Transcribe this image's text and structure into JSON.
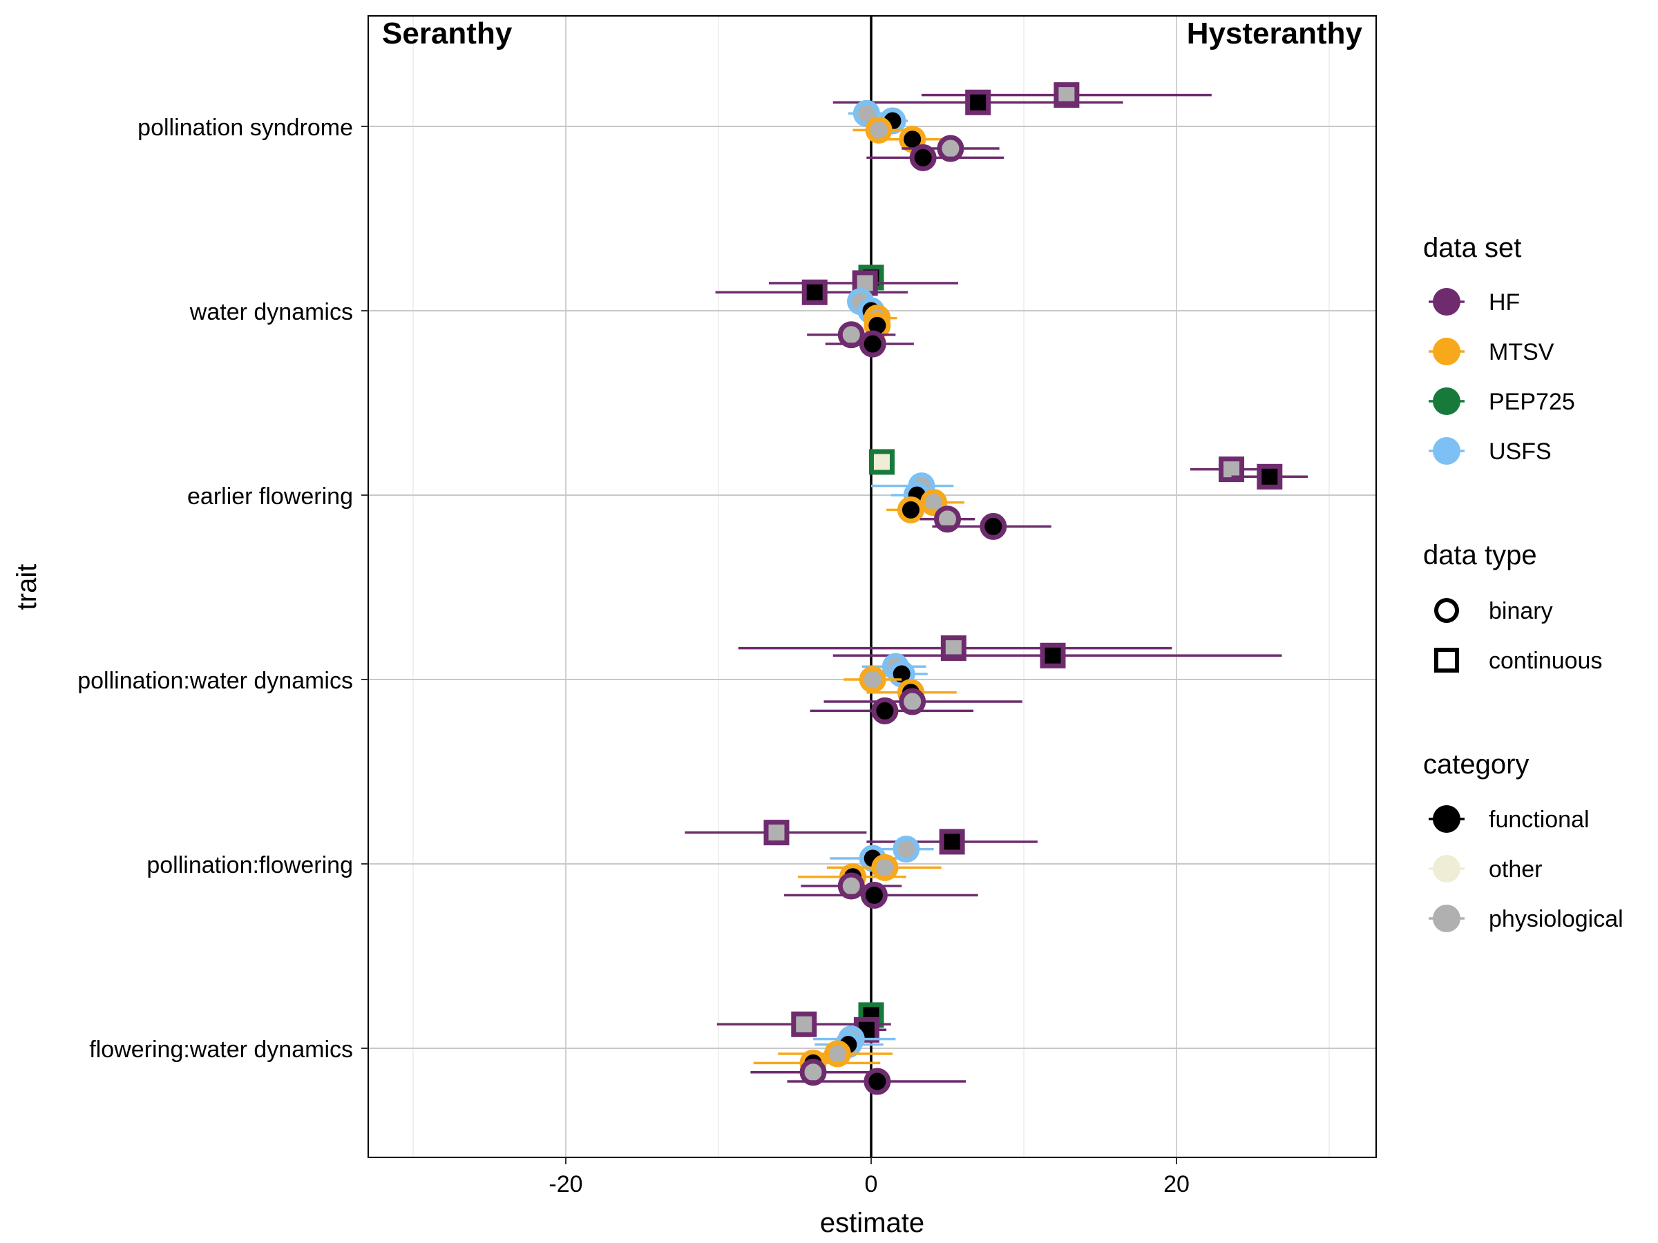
{
  "chart_data": {
    "type": "scatter",
    "title": "",
    "xlabel": "estimate",
    "ylabel": "trait",
    "xlim": [
      -33,
      33.5
    ],
    "x_ticks": [
      -20,
      0,
      20
    ],
    "x_tick_labels": [
      "-20",
      "0",
      "20"
    ],
    "grid": true,
    "reference_line_x": 0,
    "annotations": {
      "left": "Seranthy",
      "right": "Hysteranthy"
    },
    "categories": [
      "pollination syndrome",
      "water dynamics",
      "earlier flowering",
      "pollination:water dynamics",
      "pollination:flowering",
      "flowering:water dynamics"
    ],
    "legend": {
      "placement": "right",
      "data_set": {
        "title": "data set",
        "entries": [
          {
            "label": "HF",
            "color": "#6e2c6e"
          },
          {
            "label": "MTSV",
            "color": "#f7a81b"
          },
          {
            "label": "PEP725",
            "color": "#177a3a"
          },
          {
            "label": "USFS",
            "color": "#7cc0f4"
          }
        ]
      },
      "data_type": {
        "title": "data type",
        "entries": [
          {
            "label": "binary",
            "shape": "circle"
          },
          {
            "label": "continuous",
            "shape": "square"
          }
        ]
      },
      "category": {
        "title": "category",
        "entries": [
          {
            "label": "functional",
            "color": "#000000"
          },
          {
            "label": "other",
            "color": "#efedd5"
          },
          {
            "label": "physiological",
            "color": "#b0b0b0"
          }
        ]
      }
    },
    "points": [
      {
        "trait": "pollination syndrome",
        "offset": -0.17,
        "x": 12.8,
        "lo": 3.3,
        "hi": 22.3,
        "set": "HF",
        "type": "continuous",
        "cat": "physiological"
      },
      {
        "trait": "pollination syndrome",
        "offset": -0.13,
        "x": 7.0,
        "lo": -2.5,
        "hi": 16.5,
        "set": "HF",
        "type": "continuous",
        "cat": "functional"
      },
      {
        "trait": "pollination syndrome",
        "offset": -0.07,
        "x": -0.3,
        "lo": -1.5,
        "hi": 0.9,
        "set": "USFS",
        "type": "binary",
        "cat": "physiological"
      },
      {
        "trait": "pollination syndrome",
        "offset": -0.03,
        "x": 1.4,
        "lo": 0.5,
        "hi": 2.4,
        "set": "USFS",
        "type": "binary",
        "cat": "functional"
      },
      {
        "trait": "pollination syndrome",
        "offset": 0.02,
        "x": 0.5,
        "lo": -1.2,
        "hi": 2.2,
        "set": "MTSV",
        "type": "binary",
        "cat": "physiological"
      },
      {
        "trait": "pollination syndrome",
        "offset": 0.07,
        "x": 2.7,
        "lo": 0.5,
        "hi": 4.9,
        "set": "MTSV",
        "type": "binary",
        "cat": "functional"
      },
      {
        "trait": "pollination syndrome",
        "offset": 0.12,
        "x": 5.2,
        "lo": 2.0,
        "hi": 8.4,
        "set": "HF",
        "type": "binary",
        "cat": "physiological"
      },
      {
        "trait": "pollination syndrome",
        "offset": 0.17,
        "x": 3.4,
        "lo": -0.3,
        "hi": 8.7,
        "set": "HF",
        "type": "binary",
        "cat": "functional"
      },
      {
        "trait": "water dynamics",
        "offset": -0.18,
        "x": 0.0,
        "lo": -0.4,
        "hi": 0.4,
        "set": "PEP725",
        "type": "continuous",
        "cat": "functional"
      },
      {
        "trait": "water dynamics",
        "offset": -0.15,
        "x": -0.4,
        "lo": -6.7,
        "hi": 5.7,
        "set": "HF",
        "type": "continuous",
        "cat": "physiological"
      },
      {
        "trait": "water dynamics",
        "offset": -0.1,
        "x": -3.7,
        "lo": -10.2,
        "hi": 2.4,
        "set": "HF",
        "type": "continuous",
        "cat": "functional"
      },
      {
        "trait": "water dynamics",
        "offset": -0.05,
        "x": -0.7,
        "lo": -1.5,
        "hi": 0.1,
        "set": "USFS",
        "type": "binary",
        "cat": "physiological"
      },
      {
        "trait": "water dynamics",
        "offset": 0.0,
        "x": 0.0,
        "lo": -0.6,
        "hi": 0.6,
        "set": "USFS",
        "type": "binary",
        "cat": "functional"
      },
      {
        "trait": "water dynamics",
        "offset": 0.04,
        "x": 0.4,
        "lo": -0.5,
        "hi": 1.7,
        "set": "MTSV",
        "type": "binary",
        "cat": "physiological"
      },
      {
        "trait": "water dynamics",
        "offset": 0.08,
        "x": 0.4,
        "lo": -0.3,
        "hi": 1.2,
        "set": "MTSV",
        "type": "binary",
        "cat": "functional"
      },
      {
        "trait": "water dynamics",
        "offset": 0.13,
        "x": -1.3,
        "lo": -4.2,
        "hi": 1.6,
        "set": "HF",
        "type": "binary",
        "cat": "physiological"
      },
      {
        "trait": "water dynamics",
        "offset": 0.18,
        "x": 0.1,
        "lo": -3.0,
        "hi": 2.8,
        "set": "HF",
        "type": "binary",
        "cat": "functional"
      },
      {
        "trait": "earlier flowering",
        "offset": -0.18,
        "x": 0.7,
        "lo": 0.3,
        "hi": 1.1,
        "set": "PEP725",
        "type": "continuous",
        "cat": "other"
      },
      {
        "trait": "earlier flowering",
        "offset": -0.14,
        "x": 23.6,
        "lo": 20.9,
        "hi": 26.3,
        "set": "HF",
        "type": "continuous",
        "cat": "physiological"
      },
      {
        "trait": "earlier flowering",
        "offset": -0.1,
        "x": 26.1,
        "lo": 23.6,
        "hi": 28.6,
        "set": "HF",
        "type": "continuous",
        "cat": "functional"
      },
      {
        "trait": "earlier flowering",
        "offset": -0.05,
        "x": 3.3,
        "lo": 0.0,
        "hi": 5.4,
        "set": "USFS",
        "type": "binary",
        "cat": "physiological"
      },
      {
        "trait": "earlier flowering",
        "offset": 0.0,
        "x": 3.0,
        "lo": 1.3,
        "hi": 4.7,
        "set": "USFS",
        "type": "binary",
        "cat": "functional"
      },
      {
        "trait": "earlier flowering",
        "offset": 0.04,
        "x": 4.1,
        "lo": 2.2,
        "hi": 6.1,
        "set": "MTSV",
        "type": "binary",
        "cat": "physiological"
      },
      {
        "trait": "earlier flowering",
        "offset": 0.08,
        "x": 2.6,
        "lo": 1.0,
        "hi": 4.2,
        "set": "MTSV",
        "type": "binary",
        "cat": "functional"
      },
      {
        "trait": "earlier flowering",
        "offset": 0.13,
        "x": 5.0,
        "lo": 3.2,
        "hi": 6.8,
        "set": "HF",
        "type": "binary",
        "cat": "physiological"
      },
      {
        "trait": "earlier flowering",
        "offset": 0.17,
        "x": 8.0,
        "lo": 4.0,
        "hi": 11.8,
        "set": "HF",
        "type": "binary",
        "cat": "functional"
      },
      {
        "trait": "pollination:water dynamics",
        "offset": -0.17,
        "x": 5.4,
        "lo": -8.7,
        "hi": 19.7,
        "set": "HF",
        "type": "continuous",
        "cat": "physiological"
      },
      {
        "trait": "pollination:water dynamics",
        "offset": -0.13,
        "x": 11.9,
        "lo": -2.5,
        "hi": 26.9,
        "set": "HF",
        "type": "continuous",
        "cat": "functional"
      },
      {
        "trait": "pollination:water dynamics",
        "offset": -0.07,
        "x": 1.6,
        "lo": -0.6,
        "hi": 3.6,
        "set": "USFS",
        "type": "binary",
        "cat": "physiological"
      },
      {
        "trait": "pollination:water dynamics",
        "offset": -0.03,
        "x": 2.0,
        "lo": 0.3,
        "hi": 3.7,
        "set": "USFS",
        "type": "binary",
        "cat": "functional"
      },
      {
        "trait": "pollination:water dynamics",
        "offset": -0.0,
        "x": 0.1,
        "lo": -1.8,
        "hi": 2.0,
        "set": "MTSV",
        "type": "binary",
        "cat": "physiological"
      },
      {
        "trait": "pollination:water dynamics",
        "offset": 0.07,
        "x": 2.6,
        "lo": -0.3,
        "hi": 5.6,
        "set": "MTSV",
        "type": "binary",
        "cat": "functional"
      },
      {
        "trait": "pollination:water dynamics",
        "offset": 0.12,
        "x": 2.7,
        "lo": -3.1,
        "hi": 9.9,
        "set": "HF",
        "type": "binary",
        "cat": "physiological"
      },
      {
        "trait": "pollination:water dynamics",
        "offset": 0.17,
        "x": 0.9,
        "lo": -4.0,
        "hi": 6.7,
        "set": "HF",
        "type": "binary",
        "cat": "functional"
      },
      {
        "trait": "pollination:flowering",
        "offset": -0.17,
        "x": -6.2,
        "lo": -12.2,
        "hi": -0.3,
        "set": "HF",
        "type": "continuous",
        "cat": "physiological"
      },
      {
        "trait": "pollination:flowering",
        "offset": -0.12,
        "x": 5.3,
        "lo": -0.3,
        "hi": 10.9,
        "set": "HF",
        "type": "continuous",
        "cat": "functional"
      },
      {
        "trait": "pollination:flowering",
        "offset": -0.08,
        "x": 2.3,
        "lo": 0.5,
        "hi": 4.1,
        "set": "USFS",
        "type": "binary",
        "cat": "physiological"
      },
      {
        "trait": "pollination:flowering",
        "offset": -0.03,
        "x": 0.1,
        "lo": -2.7,
        "hi": 2.9,
        "set": "USFS",
        "type": "binary",
        "cat": "functional"
      },
      {
        "trait": "pollination:flowering",
        "offset": 0.02,
        "x": 0.9,
        "lo": -2.9,
        "hi": 4.6,
        "set": "MTSV",
        "type": "binary",
        "cat": "physiological"
      },
      {
        "trait": "pollination:flowering",
        "offset": 0.07,
        "x": -1.2,
        "lo": -4.8,
        "hi": 2.3,
        "set": "MTSV",
        "type": "binary",
        "cat": "functional"
      },
      {
        "trait": "pollination:flowering",
        "offset": 0.12,
        "x": -1.3,
        "lo": -4.6,
        "hi": 2.0,
        "set": "HF",
        "type": "binary",
        "cat": "physiological"
      },
      {
        "trait": "pollination:flowering",
        "offset": 0.17,
        "x": 0.2,
        "lo": -5.7,
        "hi": 7.0,
        "set": "HF",
        "type": "binary",
        "cat": "functional"
      },
      {
        "trait": "flowering:water dynamics",
        "offset": -0.18,
        "x": 0.0,
        "lo": -0.4,
        "hi": 0.4,
        "set": "PEP725",
        "type": "continuous",
        "cat": "functional"
      },
      {
        "trait": "flowering:water dynamics",
        "offset": -0.13,
        "x": -4.4,
        "lo": -10.1,
        "hi": 1.3,
        "set": "HF",
        "type": "continuous",
        "cat": "physiological"
      },
      {
        "trait": "flowering:water dynamics",
        "offset": -0.1,
        "x": -0.3,
        "lo": -1.3,
        "hi": 1.0,
        "set": "HF",
        "type": "continuous",
        "cat": "functional"
      },
      {
        "trait": "flowering:water dynamics",
        "offset": -0.05,
        "x": -1.3,
        "lo": -3.8,
        "hi": 1.6,
        "set": "USFS",
        "type": "binary",
        "cat": "physiological"
      },
      {
        "trait": "flowering:water dynamics",
        "offset": -0.02,
        "x": -1.5,
        "lo": -3.7,
        "hi": 0.8,
        "set": "USFS",
        "type": "binary",
        "cat": "functional"
      },
      {
        "trait": "flowering:water dynamics",
        "offset": 0.03,
        "x": -2.2,
        "lo": -6.1,
        "hi": 1.4,
        "set": "MTSV",
        "type": "binary",
        "cat": "physiological"
      },
      {
        "trait": "flowering:water dynamics",
        "offset": 0.08,
        "x": -3.8,
        "lo": -7.7,
        "hi": 0.6,
        "set": "MTSV",
        "type": "binary",
        "cat": "functional"
      },
      {
        "trait": "flowering:water dynamics",
        "offset": 0.13,
        "x": -3.8,
        "lo": -7.9,
        "hi": 0.9,
        "set": "HF",
        "type": "binary",
        "cat": "physiological"
      },
      {
        "trait": "flowering:water dynamics",
        "offset": 0.18,
        "x": 0.4,
        "lo": -5.5,
        "hi": 6.2,
        "set": "HF",
        "type": "binary",
        "cat": "functional"
      }
    ]
  }
}
